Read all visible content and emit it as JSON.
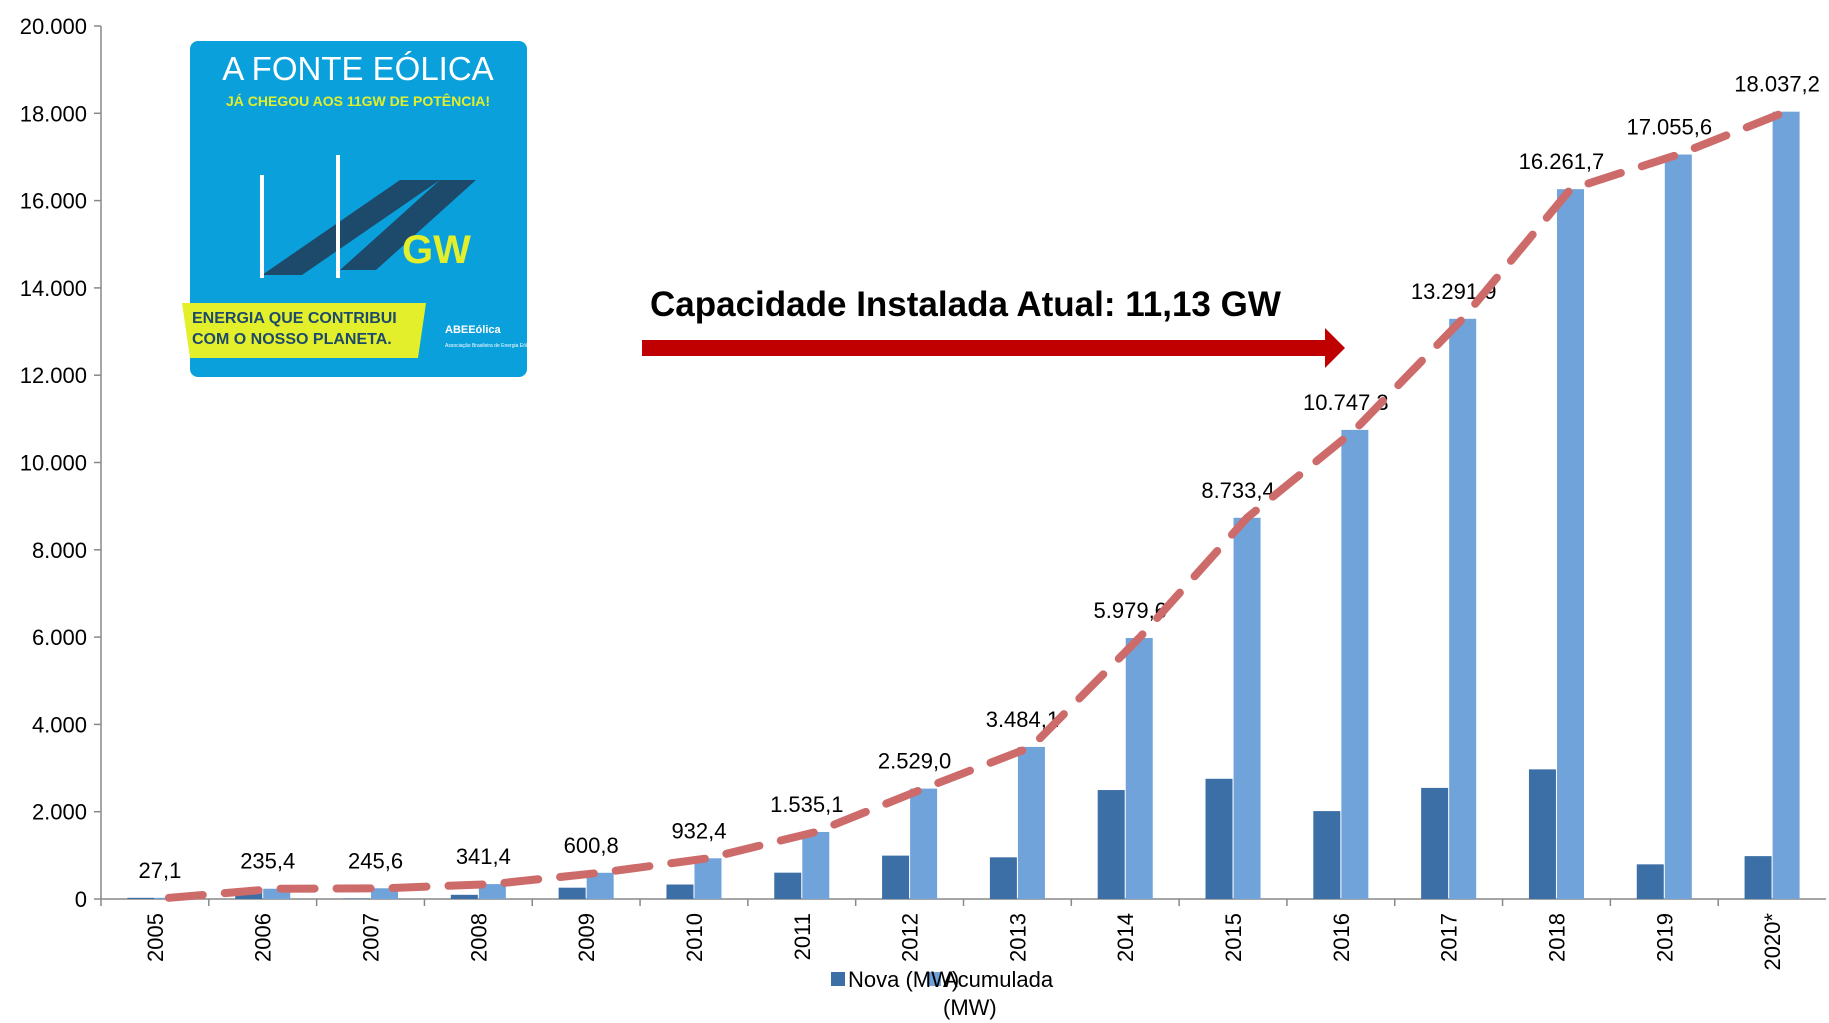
{
  "chart_data": {
    "type": "bar",
    "annotation": "Capacidade Instalada Atual: 11,13 GW",
    "badge": {
      "title": "A FONTE EÓLICA",
      "subtitle": "JÁ CHEGOU AOS 11GW DE POTÊNCIA!",
      "unit": "GW",
      "slogan_line1": "ENERGIA QUE CONTRIBUI",
      "slogan_line2": "COM O NOSSO PLANETA.",
      "logo": "ABEEólica",
      "logo_caption": "Associação Brasileira de Energia Eólica"
    },
    "categories": [
      "2005",
      "2006",
      "2007",
      "2008",
      "2009",
      "2010",
      "2011",
      "2012",
      "2013",
      "2014",
      "2015",
      "2016",
      "2017",
      "2018",
      "2019",
      "2020*"
    ],
    "series": [
      {
        "name": "Nova (MW)",
        "color": "#3c6fa6",
        "values": [
          27,
          208,
          10,
          96,
          259,
          332,
          603,
          994,
          955,
          2496,
          2754,
          2014,
          2545,
          2970,
          794,
          982
        ]
      },
      {
        "name": "Acumulada (MW)",
        "color": "#6fa3da",
        "values": [
          27.1,
          235.4,
          245.6,
          341.4,
          600.8,
          932.4,
          1535.1,
          2529.0,
          3484.1,
          5979.6,
          8733.4,
          10747.3,
          13291.9,
          16261.7,
          17055.6,
          18037.2
        ],
        "value_labels": [
          "27,1",
          "235,4",
          "245,6",
          "341,4",
          "600,8",
          "932,4",
          "1.535,1",
          "2.529,0",
          "3.484,1",
          "5.979,6",
          "8.733,4",
          "10.747,3",
          "13.291,9",
          "16.261,7",
          "17.055,6",
          "18.037,2"
        ]
      }
    ],
    "trend_color": "#cd6b6b",
    "ylim": [
      0,
      20000
    ],
    "yticks": [
      0,
      {
        "value": 2000,
        "label": "2.000"
      },
      {
        "value": 4000,
        "label": "4.000"
      },
      {
        "value": 6000,
        "label": "6.000"
      },
      {
        "value": 8000,
        "label": "8.000"
      },
      {
        "value": 10000,
        "label": "10.000"
      },
      {
        "value": 12000,
        "label": "12.000"
      },
      {
        "value": 14000,
        "label": "14.000"
      },
      {
        "value": 16000,
        "label": "16.000"
      },
      {
        "value": 18000,
        "label": "18.000"
      },
      {
        "value": 20000,
        "label": "20.000"
      }
    ]
  }
}
